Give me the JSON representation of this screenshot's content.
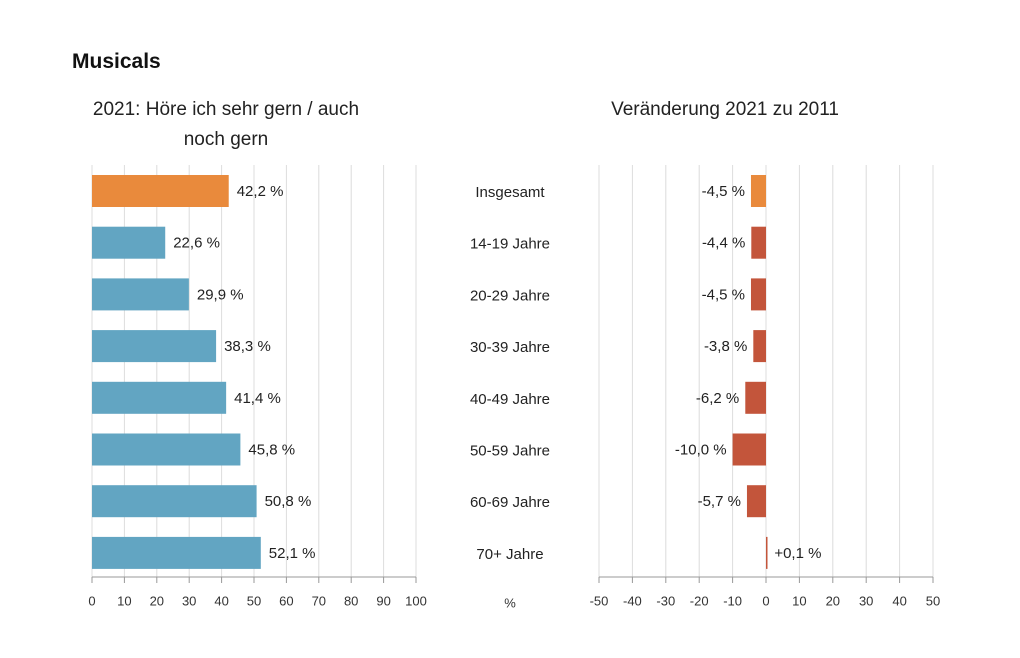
{
  "title": "Musicals",
  "unit_label": "%",
  "chart_data": [
    {
      "type": "hbar",
      "title": "2021: Höre ich sehr gern / auch noch gern",
      "categories": [
        "Insgesamt",
        "14-19 Jahre",
        "20-29 Jahre",
        "30-39 Jahre",
        "40-49 Jahre",
        "50-59 Jahre",
        "60-69 Jahre",
        "70+ Jahre"
      ],
      "values": [
        42.2,
        22.6,
        29.9,
        38.3,
        41.4,
        45.8,
        50.8,
        52.1
      ],
      "value_labels": [
        "42,2 %",
        "22,6 %",
        "29,9 %",
        "38,3 %",
        "41,4 %",
        "45,8 %",
        "50,8 %",
        "52,1 %"
      ],
      "colors": [
        "#e98a3c",
        "#62a5c2",
        "#62a5c2",
        "#62a5c2",
        "#62a5c2",
        "#62a5c2",
        "#62a5c2",
        "#62a5c2"
      ],
      "xlim": [
        0,
        100
      ],
      "xticks": [
        0,
        10,
        20,
        30,
        40,
        50,
        60,
        70,
        80,
        90,
        100
      ],
      "grid": true
    },
    {
      "type": "hbar",
      "title": "Veränderung 2021 zu 2011",
      "values": [
        -4.5,
        -4.4,
        -4.5,
        -3.8,
        -6.2,
        -10.0,
        -5.7,
        0.1
      ],
      "value_labels": [
        "-4,5 %",
        "-4,4 %",
        "-4,5 %",
        "-3,8 %",
        "-6,2 %",
        "-10,0 %",
        "-5,7 %",
        "+0,1 %"
      ],
      "colors": [
        "#e98a3c",
        "#c3553b",
        "#c3553b",
        "#c3553b",
        "#c3553b",
        "#c3553b",
        "#c3553b",
        "#c3553b"
      ],
      "xlim": [
        -50,
        50
      ],
      "xticks": [
        -50,
        -40,
        -30,
        -20,
        -10,
        0,
        10,
        20,
        30,
        40,
        50
      ],
      "grid": true
    }
  ]
}
